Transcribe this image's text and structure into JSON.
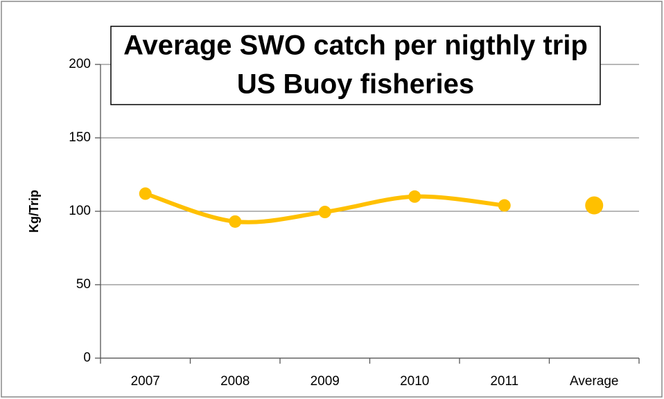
{
  "chart_data": {
    "type": "line",
    "title": [
      "Average SWO catch per nigthly trip",
      "US Buoy fisheries"
    ],
    "y_label": "Kg/Trip",
    "categories": [
      "2007",
      "2008",
      "2009",
      "2010",
      "2011",
      "Average"
    ],
    "series": [
      {
        "color": "#ffc000",
        "values": [
          112,
          93,
          99.5,
          110,
          104,
          null
        ]
      },
      {
        "color": "#ffc000",
        "values": [
          null,
          null,
          null,
          null,
          null,
          104
        ]
      }
    ],
    "ylim": [
      0,
      200
    ],
    "yticks": [
      0,
      50,
      100,
      150,
      200
    ],
    "grid": true
  }
}
